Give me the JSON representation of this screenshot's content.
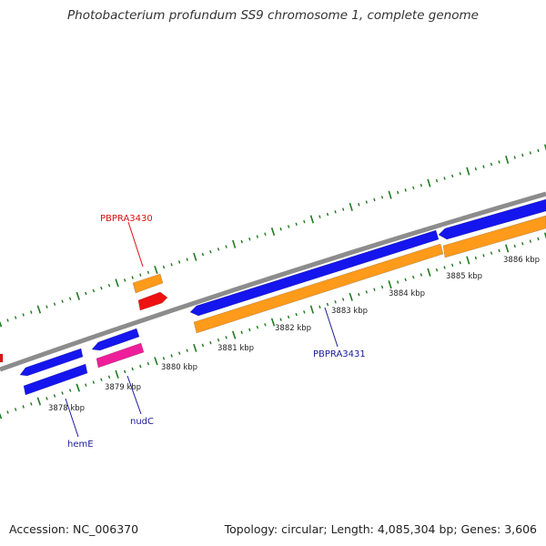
{
  "header": {
    "title": "Photobacterium profundum SS9 chromosome 1, complete genome"
  },
  "footer": {
    "accession": "Accession: NC_006370",
    "summary": "Topology: circular; Length: 4,085,304 bp; Genes: 3,606"
  },
  "colors": {
    "backbone": "#8c8c8c",
    "tick": "#1e7a1e",
    "cds_blue": "#1515ee",
    "cds_orange": "#ff9a1a",
    "cds_red": "#ee1111",
    "cds_pink": "#ee1e9a",
    "label_red": "#dd1111",
    "label_blue": "#1a1a99"
  },
  "scale": {
    "unit": "kbp",
    "ticks": [
      "3878 kbp",
      "3879 kbp",
      "3880 kbp",
      "3881 kbp",
      "3882 kbp",
      "3883 kbp",
      "3884 kbp",
      "3885 kbp",
      "3886 kbp"
    ]
  },
  "genes": {
    "labeled": [
      {
        "name": "PBPRA3430",
        "color": "label_red"
      },
      {
        "name": "PBPRA3431",
        "color": "label_blue"
      },
      {
        "name": "nudC",
        "color": "label_blue"
      },
      {
        "name": "hemE",
        "color": "label_blue"
      }
    ]
  }
}
